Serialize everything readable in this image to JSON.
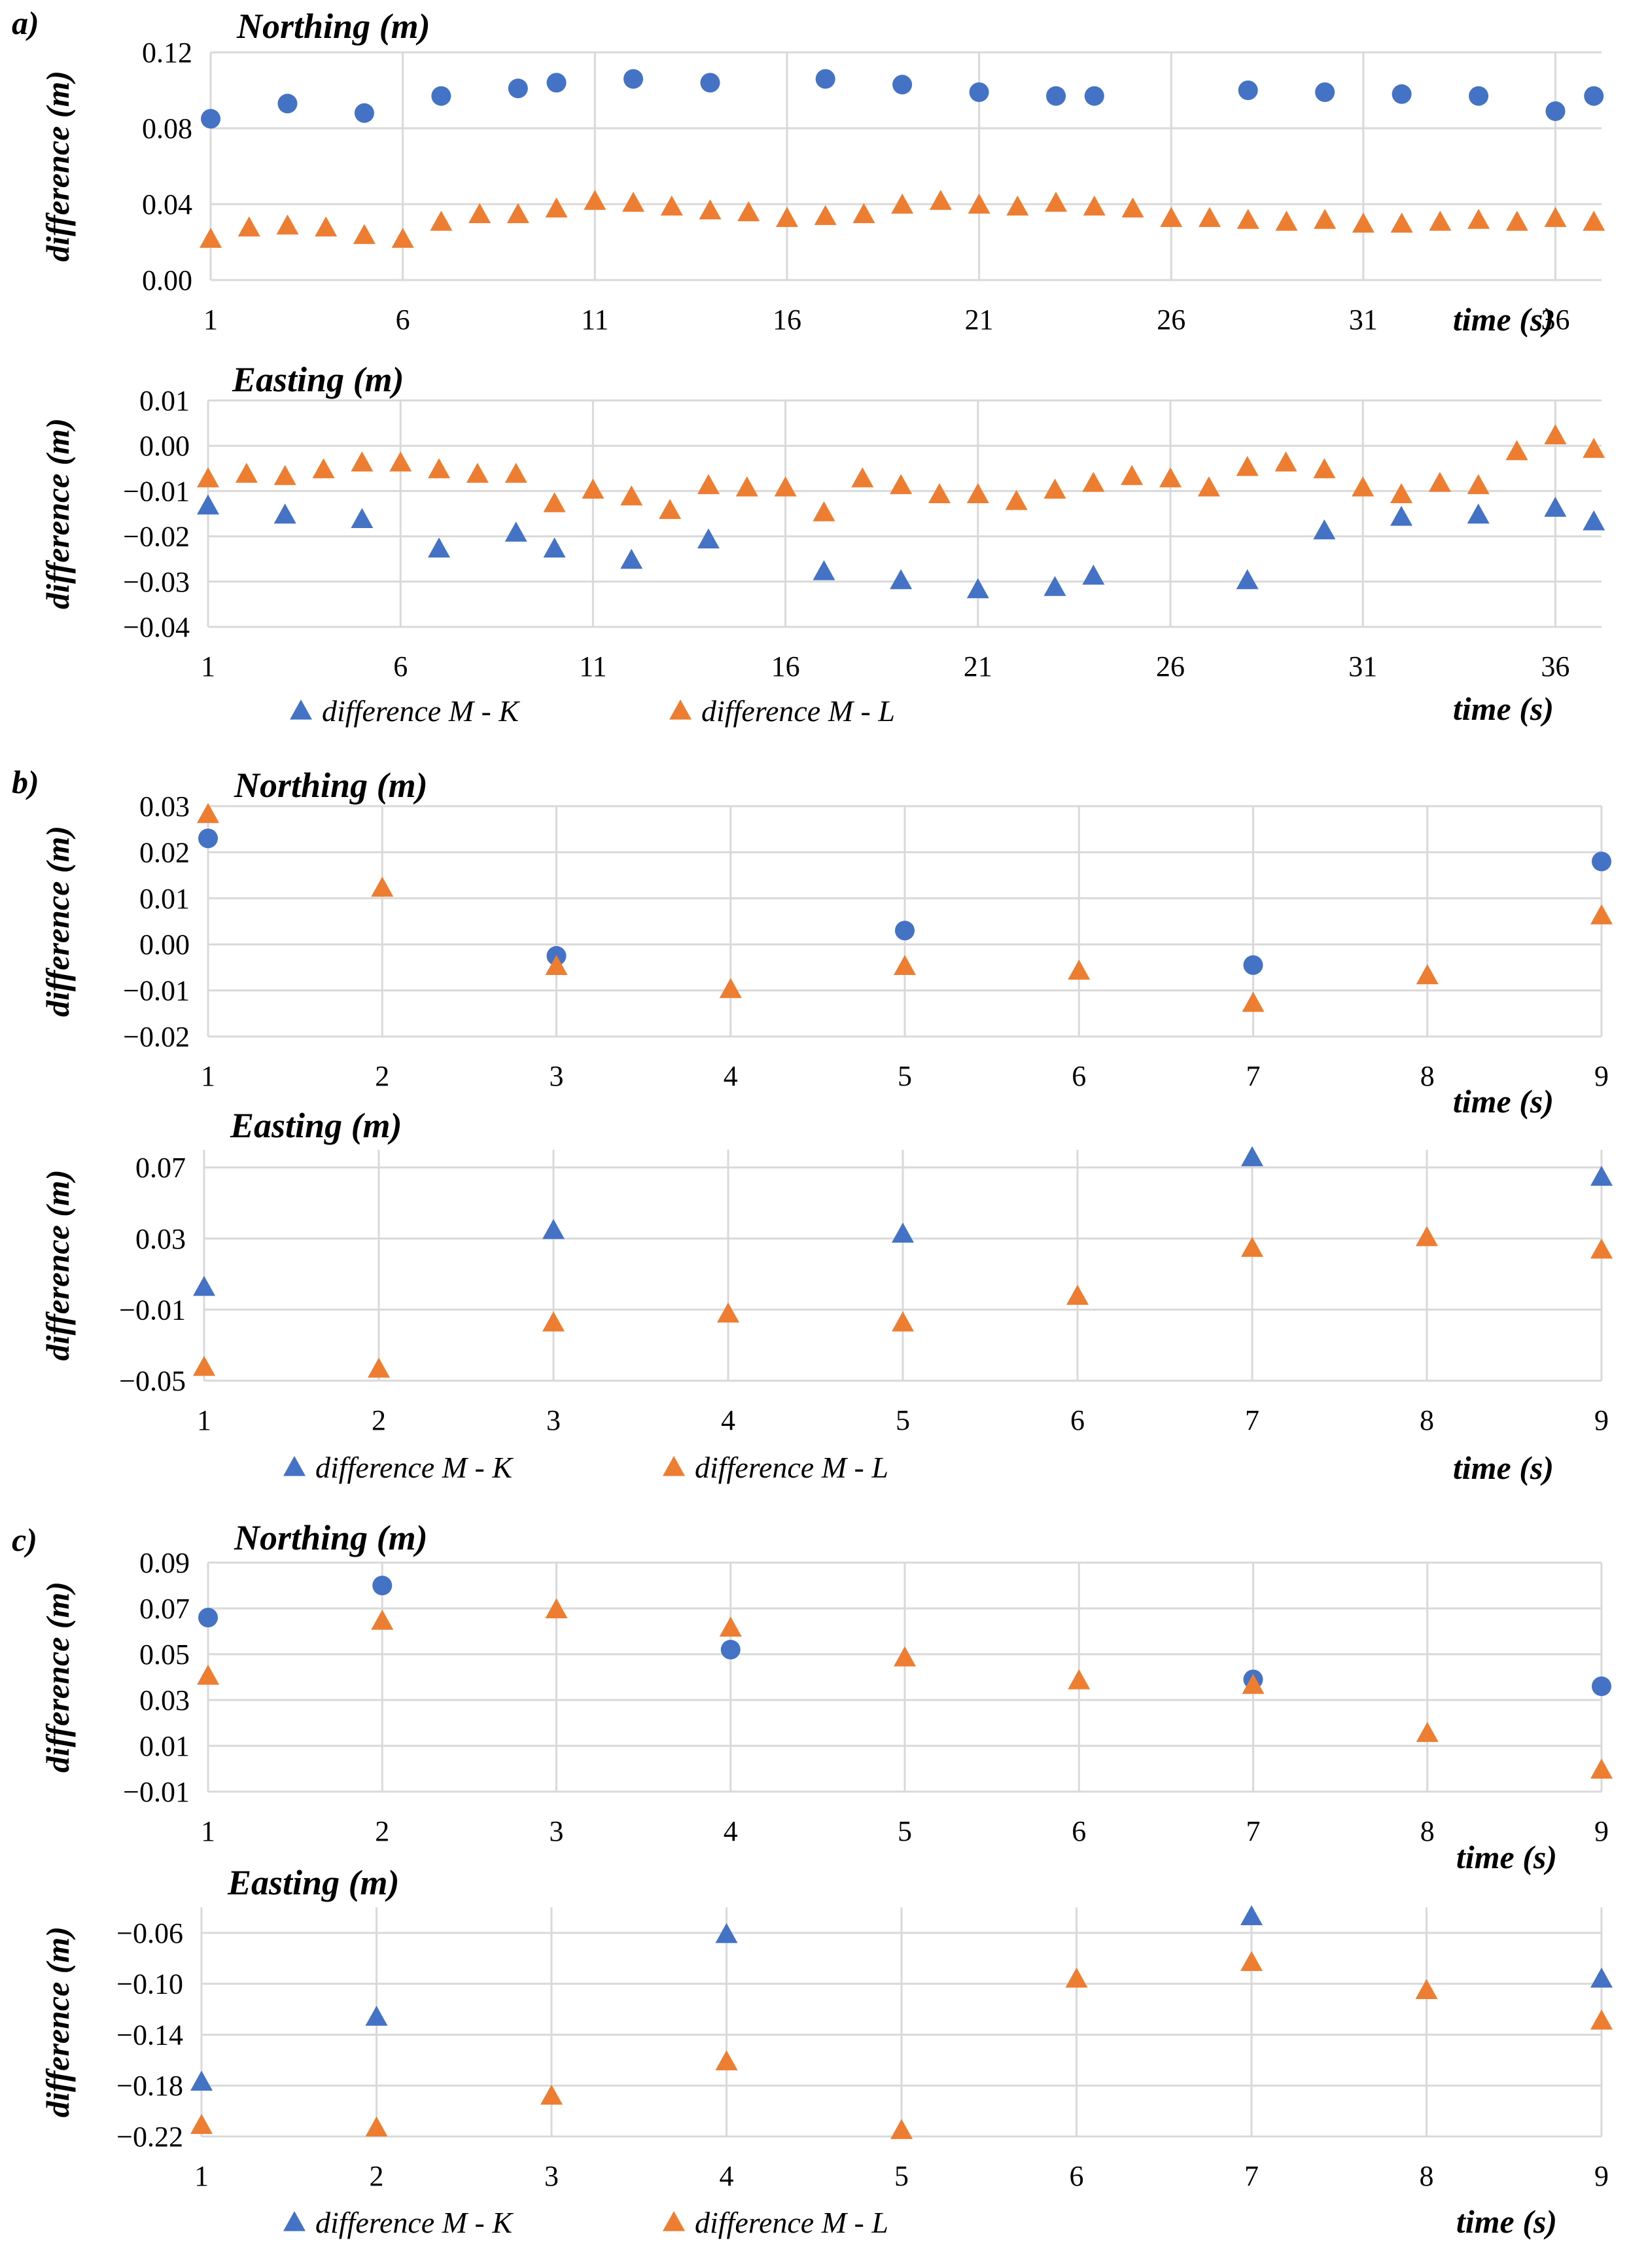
{
  "colors": {
    "mk": "#4472C4",
    "ml": "#ED7D31",
    "grid": "#d9d9d9"
  },
  "panels": [
    {
      "label": "a)"
    },
    {
      "label": "b)"
    },
    {
      "label": "c)"
    }
  ],
  "chart_data": [
    {
      "type": "scatter",
      "title": "Northing (m)",
      "ylabel": "difference (m)",
      "xlabel": "time (s)",
      "xlim": [
        1,
        37.2
      ],
      "ylim": [
        0,
        0.12
      ],
      "yticks": [
        0,
        0.04,
        0.08,
        0.12
      ],
      "ytick_labels": [
        "0.00",
        "0.04",
        "0.08",
        "0.12"
      ],
      "xticks": [
        1,
        6,
        11,
        16,
        21,
        26,
        31,
        36
      ],
      "xtick_labels": [
        "1",
        "6",
        "11",
        "16",
        "21",
        "26",
        "31",
        "36"
      ],
      "xgrid": [
        6,
        11,
        16,
        21,
        26,
        31,
        36
      ],
      "series": [
        {
          "name": "difference M - K",
          "marker": "circle",
          "color": "#4472C4",
          "points": [
            [
              1,
              0.085
            ],
            [
              3,
              0.093
            ],
            [
              5,
              0.088
            ],
            [
              7,
              0.097
            ],
            [
              9,
              0.101
            ],
            [
              10,
              0.104
            ],
            [
              12,
              0.106
            ],
            [
              14,
              0.104
            ],
            [
              17,
              0.106
            ],
            [
              19,
              0.103
            ],
            [
              21,
              0.099
            ],
            [
              23,
              0.097
            ],
            [
              24,
              0.097
            ],
            [
              28,
              0.1
            ],
            [
              30,
              0.099
            ],
            [
              32,
              0.098
            ],
            [
              34,
              0.097
            ],
            [
              36,
              0.089
            ],
            [
              37,
              0.097
            ]
          ]
        },
        {
          "name": "difference M - L",
          "marker": "triangle",
          "color": "#ED7D31",
          "points": [
            [
              1,
              0.021
            ],
            [
              2,
              0.027
            ],
            [
              3,
              0.028
            ],
            [
              4,
              0.027
            ],
            [
              5,
              0.023
            ],
            [
              6,
              0.021
            ],
            [
              7,
              0.03
            ],
            [
              8,
              0.034
            ],
            [
              9,
              0.034
            ],
            [
              10,
              0.037
            ],
            [
              11,
              0.041
            ],
            [
              12,
              0.04
            ],
            [
              13,
              0.038
            ],
            [
              14,
              0.036
            ],
            [
              15,
              0.035
            ],
            [
              16,
              0.032
            ],
            [
              17,
              0.033
            ],
            [
              18,
              0.034
            ],
            [
              19,
              0.039
            ],
            [
              20,
              0.041
            ],
            [
              21,
              0.039
            ],
            [
              22,
              0.038
            ],
            [
              23,
              0.04
            ],
            [
              24,
              0.038
            ],
            [
              25,
              0.037
            ],
            [
              26,
              0.032
            ],
            [
              27,
              0.032
            ],
            [
              28,
              0.031
            ],
            [
              29,
              0.03
            ],
            [
              30,
              0.031
            ],
            [
              31,
              0.029
            ],
            [
              32,
              0.029
            ],
            [
              33,
              0.03
            ],
            [
              34,
              0.031
            ],
            [
              35,
              0.03
            ],
            [
              36,
              0.032
            ],
            [
              37,
              0.03
            ]
          ]
        }
      ],
      "legend": false
    },
    {
      "type": "scatter",
      "title": "Easting (m)",
      "ylabel": "difference (m)",
      "xlabel": "time (s)",
      "xlim": [
        1,
        37.2
      ],
      "ylim": [
        -0.04,
        0.01
      ],
      "yticks": [
        -0.04,
        -0.03,
        -0.02,
        -0.01,
        0.0,
        0.01
      ],
      "ytick_labels": [
        "−0.04",
        "−0.03",
        "−0.02",
        "−0.01",
        "0.00",
        "0.01"
      ],
      "xticks": [
        1,
        6,
        11,
        16,
        21,
        26,
        31,
        36
      ],
      "xtick_labels": [
        "1",
        "6",
        "11",
        "16",
        "21",
        "26",
        "31",
        "36"
      ],
      "xgrid": [
        6,
        11,
        16,
        21,
        26,
        31,
        36
      ],
      "series": [
        {
          "name": "difference M - K",
          "marker": "triangle",
          "color": "#4472C4",
          "points": [
            [
              1,
              -0.0135
            ],
            [
              3,
              -0.0155
            ],
            [
              5,
              -0.0165
            ],
            [
              7,
              -0.023
            ],
            [
              9,
              -0.0195
            ],
            [
              10,
              -0.023
            ],
            [
              12,
              -0.0255
            ],
            [
              14,
              -0.021
            ],
            [
              17,
              -0.028
            ],
            [
              19,
              -0.03
            ],
            [
              21,
              -0.032
            ],
            [
              23,
              -0.0315
            ],
            [
              24,
              -0.029
            ],
            [
              28,
              -0.03
            ],
            [
              30,
              -0.019
            ],
            [
              32,
              -0.016
            ],
            [
              34,
              -0.0155
            ],
            [
              36,
              -0.014
            ],
            [
              37,
              -0.017
            ]
          ]
        },
        {
          "name": "difference M - L",
          "marker": "triangle",
          "color": "#ED7D31",
          "points": [
            [
              1,
              -0.0075
            ],
            [
              2,
              -0.0065
            ],
            [
              3,
              -0.007
            ],
            [
              4,
              -0.0055
            ],
            [
              5,
              -0.004
            ],
            [
              6,
              -0.004
            ],
            [
              7,
              -0.0055
            ],
            [
              8,
              -0.0065
            ],
            [
              9,
              -0.0065
            ],
            [
              10,
              -0.013
            ],
            [
              11,
              -0.01
            ],
            [
              12,
              -0.0115
            ],
            [
              13,
              -0.0145
            ],
            [
              14,
              -0.009
            ],
            [
              15,
              -0.0095
            ],
            [
              16,
              -0.0095
            ],
            [
              17,
              -0.015
            ],
            [
              18,
              -0.0075
            ],
            [
              19,
              -0.009
            ],
            [
              20,
              -0.011
            ],
            [
              21,
              -0.011
            ],
            [
              22,
              -0.0125
            ],
            [
              23,
              -0.01
            ],
            [
              24,
              -0.0085
            ],
            [
              25,
              -0.007
            ],
            [
              26,
              -0.0075
            ],
            [
              27,
              -0.0095
            ],
            [
              28,
              -0.005
            ],
            [
              29,
              -0.004
            ],
            [
              30,
              -0.0055
            ],
            [
              31,
              -0.0095
            ],
            [
              32,
              -0.011
            ],
            [
              33,
              -0.0085
            ],
            [
              34,
              -0.009
            ],
            [
              35,
              -0.0015
            ],
            [
              36,
              0.002
            ],
            [
              37,
              -0.001
            ]
          ]
        }
      ],
      "legend": true
    },
    {
      "type": "scatter",
      "title": "Northing (m)",
      "ylabel": "difference (m)",
      "xlabel": "time (s)",
      "xlim": [
        1,
        9
      ],
      "ylim": [
        -0.02,
        0.03
      ],
      "yticks": [
        -0.02,
        -0.01,
        0.0,
        0.01,
        0.02,
        0.03
      ],
      "ytick_labels": [
        "−0.02",
        "−0.01",
        "0.00",
        "0.01",
        "0.02",
        "0.03"
      ],
      "xticks": [
        1,
        2,
        3,
        4,
        5,
        6,
        7,
        8,
        9
      ],
      "xtick_labels": [
        "1",
        "2",
        "3",
        "4",
        "5",
        "6",
        "7",
        "8",
        "9"
      ],
      "xgrid": [
        2,
        3,
        4,
        5,
        6,
        7,
        8,
        9
      ],
      "series": [
        {
          "name": "difference M - K",
          "marker": "circle",
          "color": "#4472C4",
          "points": [
            [
              1,
              0.023
            ],
            [
              3,
              -0.0025
            ],
            [
              5,
              0.003
            ],
            [
              7,
              -0.0045
            ],
            [
              9,
              0.018
            ]
          ]
        },
        {
          "name": "difference M - L",
          "marker": "triangle",
          "color": "#ED7D31",
          "points": [
            [
              1,
              0.028
            ],
            [
              2,
              0.012
            ],
            [
              3,
              -0.005
            ],
            [
              4,
              -0.01
            ],
            [
              5,
              -0.005
            ],
            [
              6,
              -0.006
            ],
            [
              7,
              -0.013
            ],
            [
              8,
              -0.007
            ],
            [
              9,
              0.006
            ]
          ]
        }
      ],
      "legend": false
    },
    {
      "type": "scatter",
      "title": "Easting (m)",
      "ylabel": "difference (m)",
      "xlabel": "time (s)",
      "xlim": [
        1,
        9
      ],
      "ylim": [
        -0.05,
        0.08
      ],
      "yticks": [
        -0.05,
        -0.01,
        0.03,
        0.07
      ],
      "ytick_labels": [
        "−0.05",
        "−0.01",
        "0.03",
        "0.07"
      ],
      "xticks": [
        1,
        2,
        3,
        4,
        5,
        6,
        7,
        8,
        9
      ],
      "xtick_labels": [
        "1",
        "2",
        "3",
        "4",
        "5",
        "6",
        "7",
        "8",
        "9"
      ],
      "xgrid": [
        2,
        3,
        4,
        5,
        6,
        7,
        8,
        9
      ],
      "series": [
        {
          "name": "difference M - K",
          "marker": "triangle",
          "color": "#4472C4",
          "points": [
            [
              1,
              0.002
            ],
            [
              3,
              0.034
            ],
            [
              5,
              0.032
            ],
            [
              7,
              0.075
            ],
            [
              9,
              0.064
            ]
          ]
        },
        {
          "name": "difference M - L",
          "marker": "triangle",
          "color": "#ED7D31",
          "points": [
            [
              1,
              -0.043
            ],
            [
              2,
              -0.044
            ],
            [
              3,
              -0.018
            ],
            [
              4,
              -0.013
            ],
            [
              5,
              -0.018
            ],
            [
              6,
              -0.003
            ],
            [
              7,
              0.024
            ],
            [
              8,
              0.03
            ],
            [
              9,
              0.023
            ]
          ]
        }
      ],
      "legend": true
    },
    {
      "type": "scatter",
      "title": "Northing (m)",
      "ylabel": "difference (m)",
      "xlabel": "time (s)",
      "xlim": [
        1,
        9
      ],
      "ylim": [
        -0.01,
        0.09
      ],
      "yticks": [
        -0.01,
        0.01,
        0.03,
        0.05,
        0.07,
        0.09
      ],
      "ytick_labels": [
        "−0.01",
        "0.01",
        "0.03",
        "0.05",
        "0.07",
        "0.09"
      ],
      "xticks": [
        1,
        2,
        3,
        4,
        5,
        6,
        7,
        8,
        9
      ],
      "xtick_labels": [
        "1",
        "2",
        "3",
        "4",
        "5",
        "6",
        "7",
        "8",
        "9"
      ],
      "xgrid": [
        2,
        3,
        4,
        5,
        6,
        7,
        8,
        9
      ],
      "series": [
        {
          "name": "difference M - K",
          "marker": "circle",
          "color": "#4472C4",
          "points": [
            [
              1,
              0.066
            ],
            [
              2,
              0.08
            ],
            [
              4,
              0.052
            ],
            [
              7,
              0.039
            ],
            [
              9,
              0.036
            ]
          ]
        },
        {
          "name": "difference M - L",
          "marker": "triangle",
          "color": "#ED7D31",
          "points": [
            [
              1,
              0.04
            ],
            [
              2,
              0.064
            ],
            [
              3,
              0.069
            ],
            [
              4,
              0.061
            ],
            [
              5,
              0.048
            ],
            [
              6,
              0.038
            ],
            [
              7,
              0.036
            ],
            [
              8,
              0.015
            ],
            [
              9,
              -0.001
            ]
          ]
        }
      ],
      "legend": false
    },
    {
      "type": "scatter",
      "title": "Easting (m)",
      "ylabel": "difference (m)",
      "xlabel": "time (s)",
      "xlim": [
        1,
        9
      ],
      "ylim": [
        -0.22,
        -0.04
      ],
      "yticks": [
        -0.22,
        -0.18,
        -0.14,
        -0.1,
        -0.06
      ],
      "ytick_labels": [
        "−0.22",
        "−0.18",
        "−0.14",
        "−0.10",
        "−0.06"
      ],
      "xticks": [
        1,
        2,
        3,
        4,
        5,
        6,
        7,
        8,
        9
      ],
      "xtick_labels": [
        "1",
        "2",
        "3",
        "4",
        "5",
        "6",
        "7",
        "8",
        "9"
      ],
      "xgrid": [
        2,
        3,
        4,
        5,
        6,
        7,
        8,
        9
      ],
      "series": [
        {
          "name": "difference M - K",
          "marker": "triangle",
          "color": "#4472C4",
          "points": [
            [
              1,
              -0.178
            ],
            [
              2,
              -0.127
            ],
            [
              4,
              -0.062
            ],
            [
              7,
              -0.048
            ],
            [
              9,
              -0.097
            ]
          ]
        },
        {
          "name": "difference M - L",
          "marker": "triangle",
          "color": "#ED7D31",
          "points": [
            [
              1,
              -0.212
            ],
            [
              2,
              -0.214
            ],
            [
              3,
              -0.189
            ],
            [
              4,
              -0.162
            ],
            [
              5,
              -0.216
            ],
            [
              6,
              -0.097
            ],
            [
              7,
              -0.084
            ],
            [
              8,
              -0.106
            ],
            [
              9,
              -0.13
            ]
          ]
        }
      ],
      "legend": true
    }
  ]
}
